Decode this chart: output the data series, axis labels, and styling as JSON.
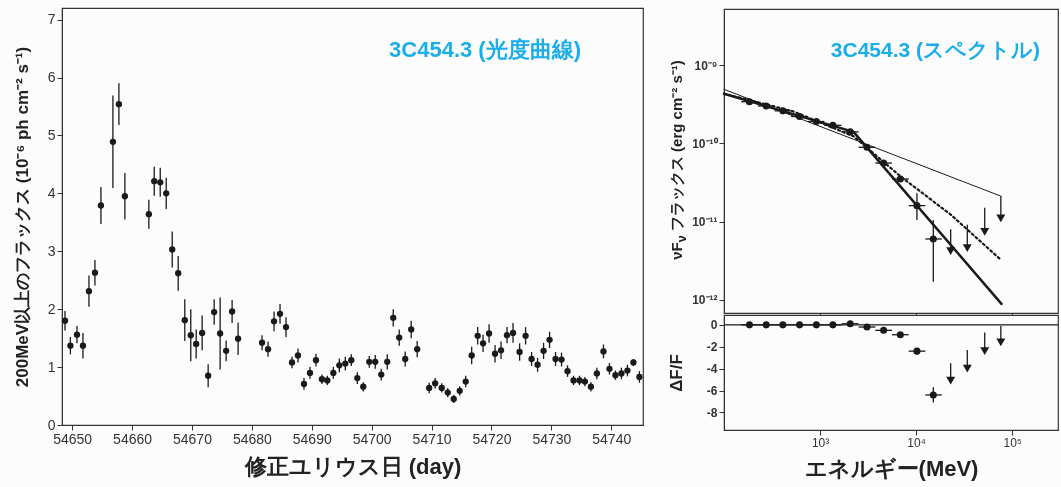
{
  "chart_data": [
    {
      "type": "scatter",
      "title": "3C454.3 (光度曲線)",
      "xlabel": "修正ユリウス日 (day)",
      "ylabel": "200MeV以上のフラックス (10⁻⁶ ph cm⁻² s⁻¹)",
      "xlim": [
        54648.3,
        54745.3
      ],
      "xticks": [
        54650,
        54660,
        54670,
        54680,
        54690,
        54700,
        54710,
        54720,
        54730,
        54740
      ],
      "ylim": [
        0,
        7.2
      ],
      "yticks": [
        0,
        1,
        2,
        3,
        4,
        5,
        6,
        7
      ],
      "marker": "circle",
      "x": [
        54648.8,
        54649.7,
        54650.8,
        54651.8,
        54652.8,
        54653.8,
        54654.8,
        54656.8,
        54657.8,
        54658.8,
        54662.8,
        54663.7,
        54664.7,
        54665.7,
        54666.7,
        54667.7,
        54668.8,
        54669.8,
        54670.7,
        54671.7,
        54672.7,
        54673.7,
        54674.7,
        54675.7,
        54676.7,
        54677.7,
        54681.7,
        54682.7,
        54683.7,
        54684.7,
        54685.7,
        54686.7,
        54687.7,
        54688.7,
        54689.7,
        54690.7,
        54691.7,
        54692.6,
        54693.6,
        54694.6,
        54695.6,
        54696.6,
        54697.6,
        54698.6,
        54699.6,
        54700.6,
        54701.6,
        54702.6,
        54703.6,
        54704.6,
        54705.6,
        54706.6,
        54707.6,
        54709.6,
        54710.6,
        54711.7,
        54712.7,
        54713.7,
        54714.7,
        54715.7,
        54716.7,
        54717.7,
        54718.6,
        54719.6,
        54720.6,
        54721.6,
        54722.6,
        54723.6,
        54724.7,
        54725.7,
        54726.7,
        54727.7,
        54728.7,
        54729.7,
        54730.7,
        54731.7,
        54732.7,
        54733.7,
        54734.7,
        54735.6,
        54736.6,
        54737.6,
        54738.7,
        54739.7,
        54740.7,
        54741.7,
        54742.7,
        54743.7,
        54744.7
      ],
      "series": [
        {
          "color": "#1a1a1a",
          "values": [
            1.8,
            1.37,
            1.56,
            1.37,
            2.31,
            2.63,
            3.79,
            4.89,
            5.54,
            3.95,
            3.64,
            4.21,
            4.19,
            4.0,
            3.03,
            2.62,
            1.81,
            1.55,
            1.4,
            1.59,
            0.85,
            1.95,
            1.58,
            1.28,
            1.96,
            1.49,
            1.42,
            1.31,
            1.79,
            1.92,
            1.69,
            1.08,
            1.2,
            0.71,
            0.9,
            1.12,
            0.79,
            0.77,
            0.9,
            1.03,
            1.06,
            1.12,
            0.81,
            0.66,
            1.09,
            1.09,
            0.87,
            1.09,
            1.85,
            1.51,
            1.14,
            1.65,
            1.31,
            0.64,
            0.72,
            0.64,
            0.56,
            0.45,
            0.59,
            0.75,
            1.2,
            1.54,
            1.41,
            1.58,
            1.23,
            1.29,
            1.55,
            1.59,
            1.26,
            1.54,
            1.14,
            1.04,
            1.28,
            1.47,
            1.14,
            1.13,
            0.93,
            0.77,
            0.77,
            0.75,
            0.66,
            0.89,
            1.27,
            0.97,
            0.86,
            0.89,
            0.94,
            1.08,
            0.83
          ],
          "errors": [
            0.17,
            0.15,
            0.15,
            0.22,
            0.27,
            0.22,
            0.32,
            0.8,
            0.36,
            0.4,
            0.25,
            0.25,
            0.25,
            0.27,
            0.31,
            0.3,
            0.36,
            0.45,
            0.25,
            0.3,
            0.2,
            0.22,
            0.62,
            0.18,
            0.2,
            0.28,
            0.13,
            0.13,
            0.17,
            0.17,
            0.17,
            0.1,
            0.12,
            0.1,
            0.1,
            0.11,
            0.08,
            0.08,
            0.1,
            0.12,
            0.12,
            0.1,
            0.1,
            0.08,
            0.1,
            0.12,
            0.1,
            0.13,
            0.15,
            0.14,
            0.13,
            0.15,
            0.14,
            0.09,
            0.09,
            0.08,
            0.08,
            0.07,
            0.08,
            0.1,
            0.15,
            0.15,
            0.15,
            0.16,
            0.15,
            0.15,
            0.14,
            0.17,
            0.15,
            0.15,
            0.12,
            0.12,
            0.14,
            0.14,
            0.12,
            0.12,
            0.1,
            0.08,
            0.08,
            0.08,
            0.08,
            0.1,
            0.12,
            0.1,
            0.08,
            0.1,
            0.1,
            0.06,
            0.1
          ]
        }
      ]
    },
    {
      "type": "scatter",
      "title": "3C454.3 (スペクトル)",
      "ylabel": "νF$_{ν}$ フラックス (erg cm⁻² s⁻¹)",
      "log": "xy",
      "tick_labels": "y",
      "xlim": [
        100,
        300000
      ],
      "xticks": [
        {
          "value": 1000,
          "label": null
        },
        {
          "value": 10000,
          "label": null
        },
        {
          "value": 100000,
          "label": null
        }
      ],
      "ylim": [
        6.8e-13,
        5.2e-09
      ],
      "yticks": [
        {
          "value": 1e-09,
          "label": "10⁻⁹"
        },
        {
          "value": 1e-10,
          "label": "10⁻¹⁰"
        },
        {
          "value": 1e-11,
          "label": "10⁻¹¹"
        },
        {
          "value": 1e-12,
          "label": "10⁻¹²"
        }
      ],
      "series": [
        {
          "type": "line",
          "color": "#1a1a1a",
          "line_style": "solid",
          "x": [
            100,
            2230,
            77400
          ],
          "values": [
            4.3e-10,
            1.4e-10,
            8.9e-13
          ]
        },
        {
          "type": "line",
          "color": "#1a1a1a",
          "line_style": "dotted",
          "x": [
            100,
            514,
            2230,
            6850,
            22900,
            77400
          ],
          "values": [
            4.3e-10,
            2.58e-10,
            1.23e-10,
            3.8e-11,
            1.23e-11,
            3.2e-12
          ]
        },
        {
          "type": "line",
          "color": "#1a1a1a",
          "line_style": "solid",
          "x": [
            100,
            77400
          ],
          "values": [
            4.9e-10,
            2.1e-11
          ]
        },
        {
          "color": "#1a1a1a",
          "marker": "circle",
          "x": [
            184,
            275,
            410,
            612,
            916,
            1360,
            2060,
            3080,
            4590,
            6850,
            10200,
            15100
          ],
          "values": [
            3.4e-10,
            3e-10,
            2.6e-10,
            2.2e-10,
            1.9e-10,
            1.7e-10,
            1.4e-10,
            8.9e-11,
            5.6e-11,
            3.5e-11,
            1.6e-11,
            6e-12
          ],
          "errors": [
            null,
            null,
            null,
            null,
            null,
            null,
            null,
            null,
            null,
            null,
            [
              1.05e-11,
              2.3e-11
            ],
            [
              1.7e-12,
              1.05e-11
            ]
          ],
          "xerrors": [
            [
              151,
              225
            ],
            [
              225,
              336
            ],
            [
              336,
              501
            ],
            [
              501,
              750
            ],
            [
              750,
              1110
            ],
            [
              1110,
              1670
            ],
            [
              1670,
              2520
            ],
            [
              2520,
              3760
            ],
            [
              3760,
              5610
            ],
            [
              5610,
              8370
            ],
            [
              8370,
              12500
            ],
            [
              12500,
              18500
            ]
          ]
        },
        {
          "color": "#1a1a1a",
          "marker": "triangle",
          "x": [
            22900,
            34100,
            51800,
            76200
          ],
          "values": [
            4.2e-12,
            4.6e-12,
            7.4e-12,
            1.1e-11
          ],
          "errors": [
            [
              4.2e-12,
              8e-12
            ],
            [
              4.6e-12,
              9.1e-12
            ],
            [
              7.4e-12,
              1.5e-11
            ],
            [
              1.1e-11,
              2.1e-11
            ]
          ]
        }
      ]
    },
    {
      "type": "scatter",
      "xlabel": "エネルギー(MeV)",
      "ylabel": "ΔF/F",
      "log": "x",
      "xlim": [
        100,
        300000
      ],
      "xticks": [
        {
          "value": 1000,
          "label": "10³"
        },
        {
          "value": 10000,
          "label": "10⁴"
        },
        {
          "value": 100000,
          "label": "10⁵"
        }
      ],
      "ylim": [
        -9.6,
        0.9
      ],
      "yticks": [
        0,
        -2,
        -4,
        -6,
        -8
      ],
      "ref_lines": [
        {
          "axis": "y",
          "value": 0,
          "color": "#1a1a1a"
        }
      ],
      "series": [
        {
          "color": "#1a1a1a",
          "marker": "circle",
          "x": [
            184,
            275,
            410,
            612,
            916,
            1360,
            2060,
            3080,
            4590,
            6850,
            10200,
            15100
          ],
          "values": [
            0,
            0,
            0,
            0,
            0,
            0,
            0.1,
            -0.2,
            -0.5,
            -0.9,
            -2.4,
            -6.4
          ],
          "errors": [
            null,
            null,
            null,
            null,
            null,
            null,
            null,
            null,
            null,
            null,
            0.3,
            0.7
          ],
          "xerrors": [
            [
              151,
              225
            ],
            [
              225,
              336
            ],
            [
              336,
              501
            ],
            [
              501,
              750
            ],
            [
              750,
              1110
            ],
            [
              1110,
              1670
            ],
            [
              1670,
              2520
            ],
            [
              2520,
              3760
            ],
            [
              3760,
              5610
            ],
            [
              5610,
              8370
            ],
            [
              8370,
              12500
            ],
            [
              12500,
              18500
            ]
          ]
        },
        {
          "color": "#1a1a1a",
          "marker": "triangle",
          "x": [
            22900,
            34100,
            51800,
            76200
          ],
          "values": [
            -5.1,
            -4.0,
            -2.4,
            -1.6
          ],
          "errors": [
            [
              -5.1,
              -3.5
            ],
            [
              -4.0,
              -2.3
            ],
            [
              -2.4,
              -0.7
            ],
            [
              -1.6,
              -0.1
            ]
          ]
        }
      ]
    }
  ]
}
